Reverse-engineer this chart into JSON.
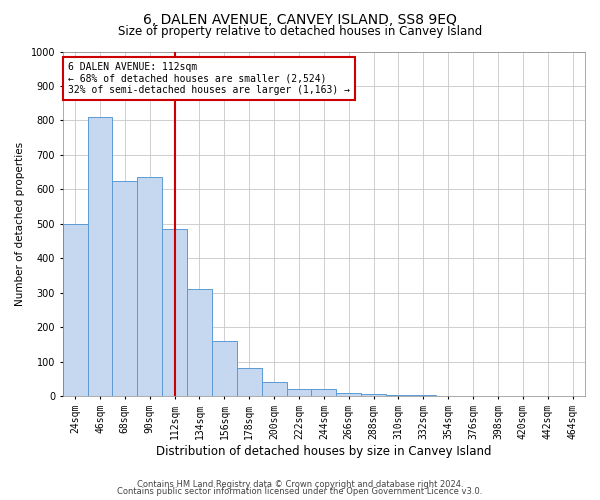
{
  "title": "6, DALEN AVENUE, CANVEY ISLAND, SS8 9EQ",
  "subtitle": "Size of property relative to detached houses in Canvey Island",
  "xlabel": "Distribution of detached houses by size in Canvey Island",
  "ylabel": "Number of detached properties",
  "categories": [
    "24sqm",
    "46sqm",
    "68sqm",
    "90sqm",
    "112sqm",
    "134sqm",
    "156sqm",
    "178sqm",
    "200sqm",
    "222sqm",
    "244sqm",
    "266sqm",
    "288sqm",
    "310sqm",
    "332sqm",
    "354sqm",
    "376sqm",
    "398sqm",
    "420sqm",
    "442sqm",
    "464sqm"
  ],
  "values": [
    500,
    810,
    625,
    635,
    485,
    310,
    160,
    80,
    40,
    20,
    20,
    10,
    5,
    3,
    2,
    1,
    1,
    0,
    0,
    0,
    0
  ],
  "highlight_index": 4,
  "bar_color": "#c5d8f0",
  "bar_edge_color": "#5b9bd5",
  "highlight_line_color": "#cc0000",
  "ylim": [
    0,
    1000
  ],
  "yticks": [
    0,
    100,
    200,
    300,
    400,
    500,
    600,
    700,
    800,
    900,
    1000
  ],
  "annotation_title": "6 DALEN AVENUE: 112sqm",
  "annotation_line1": "← 68% of detached houses are smaller (2,524)",
  "annotation_line2": "32% of semi-detached houses are larger (1,163) →",
  "annotation_box_color": "#cc0000",
  "footer1": "Contains HM Land Registry data © Crown copyright and database right 2024.",
  "footer2": "Contains public sector information licensed under the Open Government Licence v3.0.",
  "bg_color": "#ffffff",
  "grid_color": "#c8c8c8",
  "title_fontsize": 10,
  "subtitle_fontsize": 8.5,
  "ylabel_fontsize": 7.5,
  "xlabel_fontsize": 8.5,
  "tick_fontsize": 7,
  "annotation_fontsize": 7,
  "footer_fontsize": 6
}
